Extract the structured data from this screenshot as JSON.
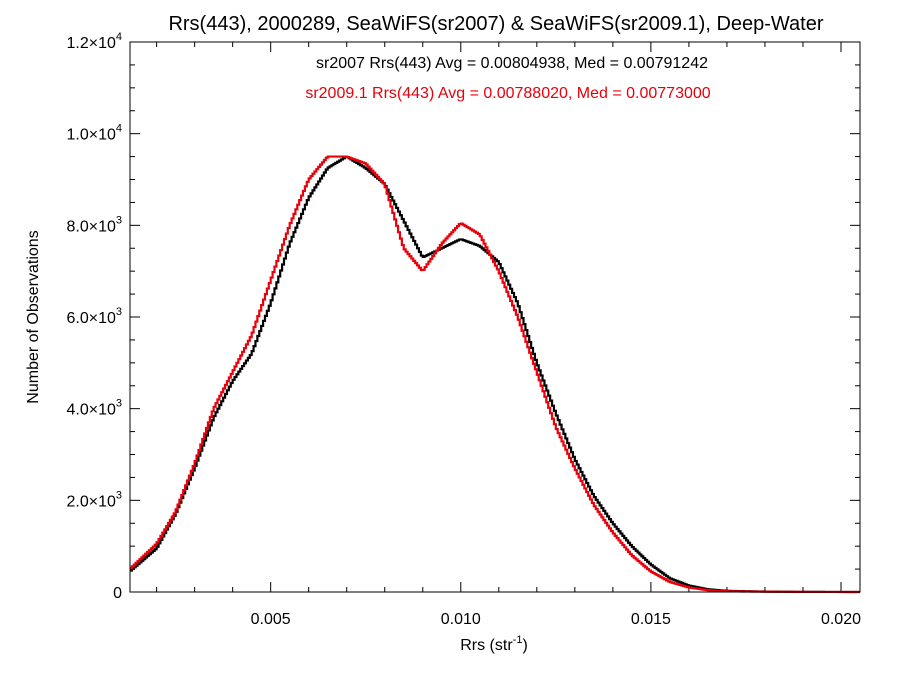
{
  "chart_data": {
    "type": "line",
    "title": "Rrs(443), 2000289, SeaWiFS(sr2007) & SeaWiFS(sr2009.1), Deep-Water",
    "xlabel": "Rrs (str",
    "xlabel_sup": "-1",
    "xlabel_end": ")",
    "ylabel": "Number of Observations",
    "xlim": [
      0.0013,
      0.0205
    ],
    "ylim": [
      0,
      12000
    ],
    "x_ticks": [
      0.005,
      0.01,
      0.015,
      0.02
    ],
    "x_tick_labels": [
      "0.005",
      "0.010",
      "0.015",
      "0.020"
    ],
    "y_ticks": [
      {
        "value": 0,
        "mantissa": "0",
        "exp": ""
      },
      {
        "value": 2000,
        "mantissa": "2.0×10",
        "exp": "3"
      },
      {
        "value": 4000,
        "mantissa": "4.0×10",
        "exp": "3"
      },
      {
        "value": 6000,
        "mantissa": "6.0×10",
        "exp": "3"
      },
      {
        "value": 8000,
        "mantissa": "8.0×10",
        "exp": "3"
      },
      {
        "value": 10000,
        "mantissa": "1.0×10",
        "exp": "4"
      },
      {
        "value": 12000,
        "mantissa": "1.2×10",
        "exp": "4"
      }
    ],
    "legend": [
      {
        "text": "sr2007 Rrs(443) Avg = 0.00804938, Med = 0.00791242",
        "color": "#000000"
      },
      {
        "text": "sr2009.1 Rrs(443) Avg = 0.00788020, Med = 0.00773000",
        "color": "#e8000b"
      }
    ],
    "series": [
      {
        "color": "#000000",
        "x": [
          0.0013,
          0.002,
          0.0025,
          0.003,
          0.0035,
          0.004,
          0.0045,
          0.005,
          0.0055,
          0.006,
          0.0065,
          0.007,
          0.0075,
          0.008,
          0.0085,
          0.009,
          0.0095,
          0.01,
          0.0105,
          0.011,
          0.0115,
          0.012,
          0.0125,
          0.013,
          0.0135,
          0.014,
          0.0145,
          0.015,
          0.0155,
          0.016,
          0.0165,
          0.017,
          0.018,
          0.019,
          0.0205
        ],
        "y": [
          450,
          950,
          1700,
          2700,
          3800,
          4600,
          5200,
          6300,
          7600,
          8600,
          9250,
          9500,
          9250,
          8900,
          8100,
          7300,
          7500,
          7700,
          7550,
          7200,
          6300,
          5000,
          3900,
          2900,
          2100,
          1500,
          1000,
          600,
          300,
          140,
          60,
          25,
          10,
          3,
          0
        ]
      },
      {
        "color": "#e8000b",
        "x": [
          0.0013,
          0.002,
          0.0025,
          0.003,
          0.0035,
          0.004,
          0.0045,
          0.005,
          0.0055,
          0.006,
          0.0065,
          0.007,
          0.0075,
          0.008,
          0.0085,
          0.009,
          0.0095,
          0.01,
          0.0105,
          0.011,
          0.0115,
          0.012,
          0.0125,
          0.013,
          0.0135,
          0.014,
          0.0145,
          0.015,
          0.0155,
          0.016,
          0.0165,
          0.017,
          0.018,
          0.019,
          0.0205
        ],
        "y": [
          500,
          1050,
          1750,
          2800,
          4000,
          4800,
          5600,
          6800,
          8000,
          9000,
          9500,
          9500,
          9350,
          8900,
          7500,
          7000,
          7600,
          8050,
          7800,
          7000,
          6000,
          4800,
          3600,
          2700,
          1900,
          1300,
          800,
          450,
          220,
          100,
          40,
          15,
          6,
          2,
          0
        ]
      }
    ]
  }
}
